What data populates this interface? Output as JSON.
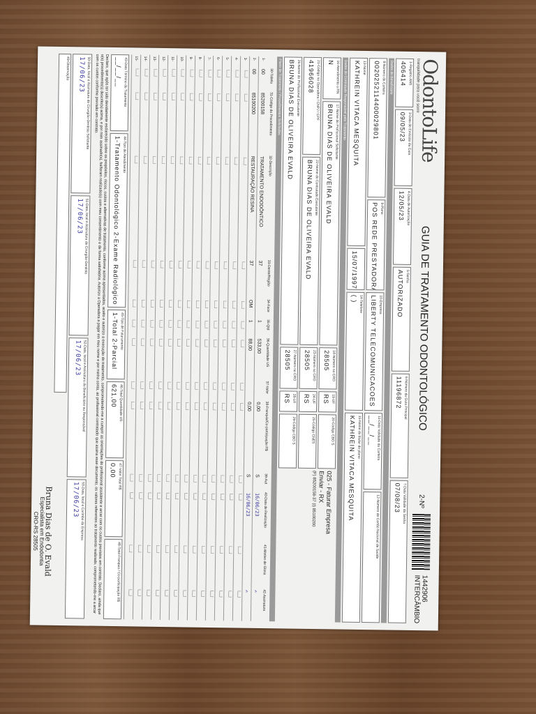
{
  "header": {
    "logo": "OdontoLife",
    "tagline": "tranquilidade para você sorrir",
    "title": "GUIA DE TRATAMENTO ODONTOLÓGICO",
    "guide_no_label": "2-Nº",
    "barcode_number": "1442906",
    "barcode_type": "INTERCÂMBIO"
  },
  "guide": [
    {
      "label": "1-Registro ANS",
      "value": "406414"
    },
    {
      "label": "3-Data de Emissão da Guia",
      "value": "09/05/23"
    },
    {
      "label": "4-Data de Autorização",
      "value": "12/05/23"
    },
    {
      "label": "5-Senha",
      "value": "AUTORIZADO"
    },
    {
      "label": "6-Número da Guia Principal",
      "value": "11196872"
    },
    {
      "label": "7-Data Validade da Senha",
      "value": "07/08/23"
    }
  ],
  "sections": {
    "beneficiary": "Dados do Beneficiário",
    "contractor": "Dados do Contratado Responsável pelo Tratamento",
    "plan": "Plano de Tratamento / Procedimentos Solicitados"
  },
  "beneficiary": {
    "card": {
      "label": "8-Número da Carteira",
      "value": "0020252114400029801"
    },
    "plan": {
      "label": "9-Plano",
      "value": "POS REDE PRESTADORA"
    },
    "company": {
      "label": "10-Empresa",
      "value": "LIBERTY TELECOMUNICACOES"
    },
    "card_validity": {
      "label": "11-Data Validade da Carteira",
      "value": "__/__/__"
    },
    "cns": {
      "label": "12-Número do Cartão Nacional de Saúde",
      "value": ""
    },
    "name": {
      "label": "13-Nome",
      "value": "KATHREIN VITACA MESQUITA"
    },
    "birth": "15/07/1997",
    "phone": {
      "label": "14-Telefone",
      "value": "(  )"
    },
    "holder": {
      "label": "15-Nome do titular do plano",
      "value": "KATHREIN VITACA MESQUITA"
    }
  },
  "contractor": {
    "rn": {
      "label": "16-Atendimento a RN",
      "value": "N"
    },
    "requester": {
      "label": "17-Nome do Profissional Solicitante",
      "value": "BRUNA DIAS DE OLIVEIRA EVALD"
    },
    "cro1": {
      "label": "18-Número no CRO",
      "value": "28505"
    },
    "uf1": {
      "label": "19-UF",
      "value": "RS"
    },
    "cbo1": {
      "label": "20-Código CBO S",
      "value": ""
    },
    "billing": "025 - Faturar Empresa",
    "send": "Enviar - RX",
    "phones": "(F) 85200158-37 (I) 85100200",
    "code": {
      "label": "21-Código na Operadora / CNPJ / CPF",
      "value": "41966028"
    },
    "executor_contracted": {
      "label": "22-Nome do Contratado Executante",
      "value": "BRUNA DIAS DE OLIVEIRA EVALD"
    },
    "cro2": {
      "label": "23-Número no CRO",
      "value": "28505"
    },
    "uf2": {
      "label": "24-UF",
      "value": "RS"
    },
    "cnes": {
      "label": "25-Código CNES",
      "value": ""
    },
    "executor": {
      "label": "26-Nome do Profissional Executante",
      "value": "BRUNA DIAS DE OLIVEIRA EVALD"
    },
    "cro3": {
      "label": "27-Número no CRO",
      "value": "28505"
    },
    "uf3": {
      "label": "28-UF",
      "value": "RS"
    },
    "cbo3": {
      "label": "29-Código CBO S",
      "value": ""
    }
  },
  "procedures": {
    "columns": [
      "30-Tabela",
      "31-Código do Procedimento",
      "32-Descrição",
      "33-Dente/Região",
      "34-Face",
      "35-Qtd",
      "36-Quantidade US",
      "37-Valor",
      "38-Franquia/Co-participação R$",
      "39-Aut",
      "40-Data de Realização",
      "41-Motivo de Glosa",
      "42-Assinatura"
    ],
    "rows": [
      {
        "table": "00",
        "code": "85200158",
        "desc": "TRATAMENTO ENDODÔNTICO",
        "tooth": "37",
        "face": "",
        "qty": "1",
        "us": "533,00",
        "value": "",
        "franchise": "0,00",
        "aut": "S",
        "date": "16/06/23",
        "gloss": "",
        "sign": "✍"
      },
      {
        "table": "00",
        "code": "85100200",
        "desc": "RESTAURAÇÃO RESINA",
        "tooth": "37",
        "face": "OM",
        "qty": "1",
        "us": "88,00",
        "value": "",
        "franchise": "0,00",
        "aut": "S",
        "date": "16/06/23",
        "gloss": "",
        "sign": "✍"
      }
    ],
    "row_count": 15
  },
  "summary": [
    {
      "label": "43-Data Término do Tratamento",
      "value": "__/__/__"
    },
    {
      "label": "44-Tipo de Atendimento",
      "value": "1-Tratamento Odontológico 2-Exame Radiológico 3-Ortodontia 4-Urgência/Emergência"
    },
    {
      "label": "45-Tipo de Faturamento",
      "value": "1-Total 2-Parcial"
    },
    {
      "label": "46-Total Quantidade US",
      "value": "621,00"
    },
    {
      "label": "47-Valor Total R$",
      "value": "0,00"
    },
    {
      "label": "48-Total Franquia / Co-participação R$",
      "value": ""
    }
  ],
  "declaration": "Declaro, que após ter sido devidamente esclarecido sobre os propósitos, riscos, custos e alternativas de tratamento, conforme acima apresentados, aceito e autorizo a execução do tratamento, comprometendo-me a cumprir as orientações do profissional assistente e arcar com os custos previstos em contrato. Declaro, ainda que o(s) procedimento(s) descrito(s) acima, e por mim assinado(s), foi/foram realizado(s) com meu consentimento e de forma satisfatória. Autorizo a Operadora a pagar em meu nome e por minha conta, ao profissional contratado que assina esse documento, os valores referentes ao tratamento realizado, comprometendo-me a arcar com os custos conforme previsão em contrato.",
  "signatures": [
    {
      "label": "50-Data, local e Assinatura do Cirurgião-Dentista Solicitante",
      "value": "17/06/23"
    },
    {
      "label": "51-Data, local e Assinatura do Cirurgião-Dentista",
      "value": "17/06/23"
    },
    {
      "label": "52-Data, local e Assinatura do Beneficiário ou Responsável",
      "value": "17/06/23"
    },
    {
      "label": "53-Data, local e Carimbo da Empresa",
      "value": "17/06/23"
    }
  ],
  "observation_label": "49-Observação",
  "stamp": {
    "name": "Bruna Dias de O. Evald",
    "title": "Especialista em Endodontia",
    "cro": "CRO-RS 28505"
  }
}
